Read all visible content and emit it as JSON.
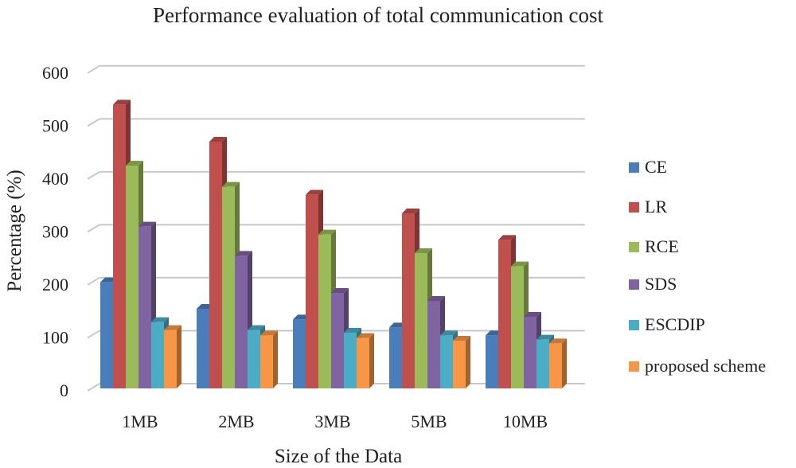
{
  "chart_data": {
    "type": "bar",
    "title": "Performance evaluation of total communication cost",
    "xlabel": "Size of the Data",
    "ylabel": "Percentage (%)",
    "ylim": [
      0,
      600
    ],
    "yticks": [
      "0",
      "100",
      "200",
      "300",
      "400",
      "500",
      "600"
    ],
    "grid": true,
    "legend_position": "right",
    "style": "3d-clustered-column",
    "categories": [
      "1MB",
      "2MB",
      "3MB",
      "5MB",
      "10MB"
    ],
    "series": [
      {
        "name": "CE",
        "color": "#4a7ebb",
        "values": [
          200,
          150,
          130,
          115,
          100
        ]
      },
      {
        "name": "LR",
        "color": "#c0504d",
        "values": [
          535,
          465,
          365,
          330,
          280
        ]
      },
      {
        "name": "RCE",
        "color": "#9bbb59",
        "values": [
          420,
          380,
          290,
          255,
          230
        ]
      },
      {
        "name": "SDS",
        "color": "#8064a2",
        "values": [
          305,
          250,
          180,
          165,
          135
        ]
      },
      {
        "name": "ESCDIP",
        "color": "#4bacc6",
        "values": [
          125,
          110,
          105,
          100,
          92
        ]
      },
      {
        "name": "proposed scheme",
        "color": "#f79646",
        "values": [
          110,
          100,
          95,
          90,
          85
        ]
      }
    ]
  }
}
